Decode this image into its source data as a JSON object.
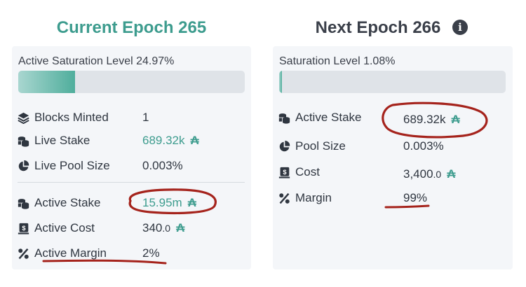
{
  "current": {
    "title": "Current Epoch 265",
    "saturation_label": "Active Saturation Level 24.97%",
    "saturation_fill": 0.25,
    "rows": [
      {
        "label": "Blocks Minted",
        "value": "1"
      },
      {
        "label": "Live Stake",
        "value": "689.32k",
        "unit": "₳"
      },
      {
        "label": "Live Pool Size",
        "value": "0.003%"
      }
    ],
    "active_rows": [
      {
        "label": "Active Stake",
        "value": "15.95m",
        "unit": "₳"
      },
      {
        "label": "Active Cost",
        "value_main": "340",
        "value_frac": ".0",
        "unit": "₳"
      },
      {
        "label": "Active Margin",
        "value": "2%"
      }
    ]
  },
  "next": {
    "title": "Next Epoch 266",
    "info_icon": "i",
    "saturation_label": "Saturation Level 1.08%",
    "saturation_fill": 0.011,
    "rows": [
      {
        "label": "Active Stake",
        "value": "689.32k",
        "unit": "₳"
      },
      {
        "label": "Pool Size",
        "value": "0.003%"
      },
      {
        "label": "Cost",
        "value_main": "3,400",
        "value_frac": ".0",
        "unit": "₳"
      },
      {
        "label": "Margin",
        "value": "99%"
      }
    ]
  },
  "colors": {
    "accent": "#3d9c8e",
    "annotation": "#a5231c",
    "card_bg": "#f4f6f9"
  }
}
